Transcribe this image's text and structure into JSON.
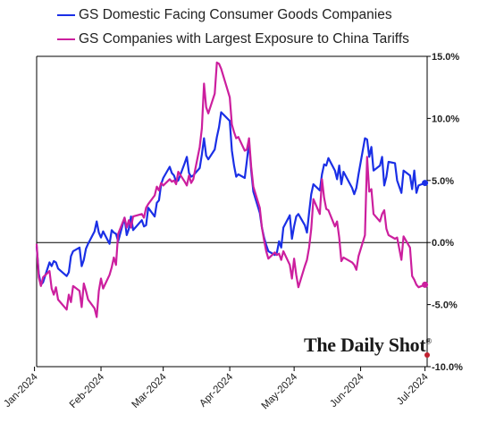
{
  "legend": {
    "series_0": "GS Domestic Facing Consumer Goods Companies",
    "series_1": "GS Companies with Largest Exposure to China Tariffs"
  },
  "brand": {
    "text": "The Daily Shot",
    "mark": "®"
  },
  "chart_data": {
    "type": "line",
    "y_axis_position": "right",
    "ylim": [
      -10,
      15
    ],
    "y_ticks": [
      "15.0%",
      "10.0%",
      "5.0%",
      "0.0%",
      "-5.0%",
      "-10.0%"
    ],
    "x_ticks": [
      "Jan-2024",
      "Feb-2024",
      "Mar-2024",
      "Apr-2024",
      "May-2024",
      "Jun-2024",
      "Jul-2024"
    ],
    "xlim": [
      "2024-01-02",
      "2024-07-02"
    ],
    "grid": false,
    "zero_line": true,
    "legend_position": "top-left",
    "colors": {
      "domestic": "#1a2fe6",
      "china": "#cc1f9e",
      "axis": "#000000"
    },
    "series": [
      {
        "name": "GS Domestic Facing Consumer Goods Companies",
        "color": "#1a2fe6",
        "points": [
          [
            "2024-01-02",
            -0.3
          ],
          [
            "2024-01-03",
            -2.5
          ],
          [
            "2024-01-04",
            -3.4
          ],
          [
            "2024-01-05",
            -3.2
          ],
          [
            "2024-01-08",
            -1.6
          ],
          [
            "2024-01-09",
            -1.9
          ],
          [
            "2024-01-10",
            -1.5
          ],
          [
            "2024-01-11",
            -1.6
          ],
          [
            "2024-01-12",
            -2.1
          ],
          [
            "2024-01-16",
            -2.7
          ],
          [
            "2024-01-17",
            -2.4
          ],
          [
            "2024-01-18",
            -1.1
          ],
          [
            "2024-01-19",
            -0.7
          ],
          [
            "2024-01-22",
            -0.4
          ],
          [
            "2024-01-23",
            -1.9
          ],
          [
            "2024-01-24",
            -1.4
          ],
          [
            "2024-01-25",
            -0.5
          ],
          [
            "2024-01-26",
            -0.1
          ],
          [
            "2024-01-29",
            0.9
          ],
          [
            "2024-01-30",
            1.7
          ],
          [
            "2024-01-31",
            0.8
          ],
          [
            "2024-02-01",
            0.4
          ],
          [
            "2024-02-02",
            0.9
          ],
          [
            "2024-02-05",
            -0.1
          ],
          [
            "2024-02-06",
            1.0
          ],
          [
            "2024-02-07",
            0.8
          ],
          [
            "2024-02-08",
            0.7
          ],
          [
            "2024-02-09",
            0.1
          ],
          [
            "2024-02-12",
            2.0
          ],
          [
            "2024-02-13",
            0.6
          ],
          [
            "2024-02-14",
            1.1
          ],
          [
            "2024-02-15",
            2.1
          ],
          [
            "2024-02-16",
            1.0
          ],
          [
            "2024-02-20",
            1.8
          ],
          [
            "2024-02-21",
            1.3
          ],
          [
            "2024-02-22",
            1.4
          ],
          [
            "2024-02-23",
            2.8
          ],
          [
            "2024-02-26",
            2.1
          ],
          [
            "2024-02-27",
            3.2
          ],
          [
            "2024-02-28",
            3.4
          ],
          [
            "2024-02-29",
            4.7
          ],
          [
            "2024-03-01",
            5.2
          ],
          [
            "2024-03-04",
            6.1
          ],
          [
            "2024-03-05",
            5.6
          ],
          [
            "2024-03-06",
            5.4
          ],
          [
            "2024-03-07",
            4.9
          ],
          [
            "2024-03-08",
            5.0
          ],
          [
            "2024-03-11",
            6.4
          ],
          [
            "2024-03-12",
            6.9
          ],
          [
            "2024-03-13",
            5.6
          ],
          [
            "2024-03-14",
            5.3
          ],
          [
            "2024-03-15",
            5.4
          ],
          [
            "2024-03-18",
            6.0
          ],
          [
            "2024-03-19",
            7.1
          ],
          [
            "2024-03-20",
            8.4
          ],
          [
            "2024-03-21",
            7.0
          ],
          [
            "2024-03-22",
            6.7
          ],
          [
            "2024-03-25",
            7.5
          ],
          [
            "2024-03-26",
            8.5
          ],
          [
            "2024-03-27",
            9.3
          ],
          [
            "2024-03-28",
            10.5
          ],
          [
            "2024-04-01",
            9.8
          ],
          [
            "2024-04-02",
            7.4
          ],
          [
            "2024-04-03",
            6.2
          ],
          [
            "2024-04-04",
            5.3
          ],
          [
            "2024-04-05",
            5.5
          ],
          [
            "2024-04-08",
            5.2
          ],
          [
            "2024-04-09",
            6.6
          ],
          [
            "2024-04-10",
            8.1
          ],
          [
            "2024-04-11",
            5.8
          ],
          [
            "2024-04-12",
            4.1
          ],
          [
            "2024-04-15",
            2.4
          ],
          [
            "2024-04-16",
            1.2
          ],
          [
            "2024-04-17",
            0.4
          ],
          [
            "2024-04-18",
            -0.2
          ],
          [
            "2024-04-19",
            -0.7
          ],
          [
            "2024-04-22",
            -1.0
          ],
          [
            "2024-04-23",
            -0.8
          ],
          [
            "2024-04-24",
            0.1
          ],
          [
            "2024-04-25",
            -0.4
          ],
          [
            "2024-04-26",
            1.2
          ],
          [
            "2024-04-29",
            2.2
          ],
          [
            "2024-04-30",
            0.3
          ],
          [
            "2024-05-01",
            1.3
          ],
          [
            "2024-05-02",
            2.1
          ],
          [
            "2024-05-03",
            2.3
          ],
          [
            "2024-05-06",
            1.4
          ],
          [
            "2024-05-07",
            0.8
          ],
          [
            "2024-05-08",
            2.4
          ],
          [
            "2024-05-09",
            3.9
          ],
          [
            "2024-05-10",
            4.7
          ],
          [
            "2024-05-13",
            4.2
          ],
          [
            "2024-05-14",
            5.5
          ],
          [
            "2024-05-15",
            6.3
          ],
          [
            "2024-05-16",
            6.2
          ],
          [
            "2024-05-17",
            6.8
          ],
          [
            "2024-05-20",
            5.8
          ],
          [
            "2024-05-21",
            5.1
          ],
          [
            "2024-05-22",
            6.2
          ],
          [
            "2024-05-23",
            4.7
          ],
          [
            "2024-05-24",
            5.7
          ],
          [
            "2024-05-28",
            4.4
          ],
          [
            "2024-05-29",
            3.9
          ],
          [
            "2024-05-30",
            4.4
          ],
          [
            "2024-05-31",
            5.5
          ],
          [
            "2024-06-03",
            8.4
          ],
          [
            "2024-06-04",
            8.3
          ],
          [
            "2024-06-05",
            6.9
          ],
          [
            "2024-06-06",
            7.7
          ],
          [
            "2024-06-07",
            5.8
          ],
          [
            "2024-06-10",
            6.2
          ],
          [
            "2024-06-11",
            6.9
          ],
          [
            "2024-06-12",
            4.6
          ],
          [
            "2024-06-13",
            5.3
          ],
          [
            "2024-06-14",
            6.5
          ],
          [
            "2024-06-17",
            6.4
          ],
          [
            "2024-06-18",
            5.0
          ],
          [
            "2024-06-20",
            4.0
          ],
          [
            "2024-06-21",
            5.8
          ],
          [
            "2024-06-24",
            5.4
          ],
          [
            "2024-06-25",
            4.3
          ],
          [
            "2024-06-26",
            5.8
          ],
          [
            "2024-06-27",
            4.0
          ],
          [
            "2024-06-28",
            4.6
          ],
          [
            "2024-07-01",
            4.8
          ]
        ]
      },
      {
        "name": "GS Companies with Largest Exposure to China Tariffs",
        "color": "#cc1f9e",
        "points": [
          [
            "2024-01-02",
            -0.1
          ],
          [
            "2024-01-03",
            -2.8
          ],
          [
            "2024-01-04",
            -3.5
          ],
          [
            "2024-01-05",
            -2.8
          ],
          [
            "2024-01-08",
            -2.3
          ],
          [
            "2024-01-09",
            -3.7
          ],
          [
            "2024-01-10",
            -4.2
          ],
          [
            "2024-01-11",
            -3.6
          ],
          [
            "2024-01-12",
            -4.6
          ],
          [
            "2024-01-16",
            -5.4
          ],
          [
            "2024-01-17",
            -4.2
          ],
          [
            "2024-01-18",
            -4.8
          ],
          [
            "2024-01-19",
            -3.5
          ],
          [
            "2024-01-22",
            -3.9
          ],
          [
            "2024-01-23",
            -5.2
          ],
          [
            "2024-01-24",
            -3.3
          ],
          [
            "2024-01-25",
            -3.9
          ],
          [
            "2024-01-26",
            -4.6
          ],
          [
            "2024-01-29",
            -5.3
          ],
          [
            "2024-01-30",
            -6.0
          ],
          [
            "2024-01-31",
            -3.9
          ],
          [
            "2024-02-01",
            -2.9
          ],
          [
            "2024-02-02",
            -3.7
          ],
          [
            "2024-02-05",
            -2.6
          ],
          [
            "2024-02-06",
            -2.0
          ],
          [
            "2024-02-07",
            -1.2
          ],
          [
            "2024-02-08",
            -1.8
          ],
          [
            "2024-02-09",
            0.7
          ],
          [
            "2024-02-12",
            2.0
          ],
          [
            "2024-02-13",
            1.2
          ],
          [
            "2024-02-14",
            1.8
          ],
          [
            "2024-02-15",
            1.2
          ],
          [
            "2024-02-16",
            2.1
          ],
          [
            "2024-02-20",
            2.3
          ],
          [
            "2024-02-21",
            2.0
          ],
          [
            "2024-02-22",
            2.8
          ],
          [
            "2024-02-23",
            3.1
          ],
          [
            "2024-02-26",
            3.8
          ],
          [
            "2024-02-27",
            4.5
          ],
          [
            "2024-02-28",
            4.2
          ],
          [
            "2024-02-29",
            4.8
          ],
          [
            "2024-03-01",
            4.6
          ],
          [
            "2024-03-04",
            5.1
          ],
          [
            "2024-03-05",
            4.9
          ],
          [
            "2024-03-06",
            5.0
          ],
          [
            "2024-03-07",
            4.7
          ],
          [
            "2024-03-08",
            5.7
          ],
          [
            "2024-03-11",
            4.9
          ],
          [
            "2024-03-12",
            4.6
          ],
          [
            "2024-03-13",
            5.4
          ],
          [
            "2024-03-14",
            4.8
          ],
          [
            "2024-03-15",
            5.1
          ],
          [
            "2024-03-18",
            7.7
          ],
          [
            "2024-03-19",
            9.2
          ],
          [
            "2024-03-20",
            12.8
          ],
          [
            "2024-03-21",
            10.9
          ],
          [
            "2024-03-22",
            10.4
          ],
          [
            "2024-03-25",
            12.0
          ],
          [
            "2024-03-26",
            14.5
          ],
          [
            "2024-03-27",
            14.4
          ],
          [
            "2024-03-28",
            14.0
          ],
          [
            "2024-04-01",
            11.7
          ],
          [
            "2024-04-02",
            9.5
          ],
          [
            "2024-04-03",
            8.9
          ],
          [
            "2024-04-04",
            8.4
          ],
          [
            "2024-04-05",
            8.5
          ],
          [
            "2024-04-08",
            7.4
          ],
          [
            "2024-04-09",
            7.5
          ],
          [
            "2024-04-10",
            8.4
          ],
          [
            "2024-04-11",
            6.1
          ],
          [
            "2024-04-12",
            4.5
          ],
          [
            "2024-04-15",
            2.8
          ],
          [
            "2024-04-16",
            1.2
          ],
          [
            "2024-04-17",
            0.2
          ],
          [
            "2024-04-18",
            -0.7
          ],
          [
            "2024-04-19",
            -1.3
          ],
          [
            "2024-04-22",
            -0.8
          ],
          [
            "2024-04-23",
            -1.0
          ],
          [
            "2024-04-24",
            -0.9
          ],
          [
            "2024-04-25",
            -1.4
          ],
          [
            "2024-04-26",
            -0.7
          ],
          [
            "2024-04-29",
            -1.8
          ],
          [
            "2024-04-30",
            -2.9
          ],
          [
            "2024-05-01",
            -1.3
          ],
          [
            "2024-05-02",
            -2.6
          ],
          [
            "2024-05-03",
            -3.6
          ],
          [
            "2024-05-06",
            -1.9
          ],
          [
            "2024-05-07",
            -1.4
          ],
          [
            "2024-05-08",
            -0.4
          ],
          [
            "2024-05-09",
            1.1
          ],
          [
            "2024-05-10",
            3.5
          ],
          [
            "2024-05-13",
            2.3
          ],
          [
            "2024-05-14",
            5.1
          ],
          [
            "2024-05-15",
            3.6
          ],
          [
            "2024-05-16",
            2.7
          ],
          [
            "2024-05-17",
            2.6
          ],
          [
            "2024-05-20",
            1.3
          ],
          [
            "2024-05-21",
            1.7
          ],
          [
            "2024-05-22",
            0.4
          ],
          [
            "2024-05-23",
            -1.5
          ],
          [
            "2024-05-24",
            -1.2
          ],
          [
            "2024-05-28",
            -1.6
          ],
          [
            "2024-05-29",
            -1.8
          ],
          [
            "2024-05-30",
            -2.2
          ],
          [
            "2024-05-31",
            -1.1
          ],
          [
            "2024-06-03",
            0.6
          ],
          [
            "2024-06-04",
            6.9
          ],
          [
            "2024-06-05",
            4.1
          ],
          [
            "2024-06-06",
            4.3
          ],
          [
            "2024-06-07",
            2.3
          ],
          [
            "2024-06-10",
            1.7
          ],
          [
            "2024-06-11",
            2.3
          ],
          [
            "2024-06-12",
            2.6
          ],
          [
            "2024-06-13",
            1.1
          ],
          [
            "2024-06-14",
            0.6
          ],
          [
            "2024-06-17",
            0.3
          ],
          [
            "2024-06-18",
            0.4
          ],
          [
            "2024-06-20",
            -1.4
          ],
          [
            "2024-06-21",
            0.5
          ],
          [
            "2024-06-24",
            -0.4
          ],
          [
            "2024-06-25",
            -2.7
          ],
          [
            "2024-06-26",
            -3.0
          ],
          [
            "2024-06-27",
            -3.4
          ],
          [
            "2024-06-28",
            -3.6
          ],
          [
            "2024-07-01",
            -3.4
          ]
        ]
      }
    ]
  }
}
